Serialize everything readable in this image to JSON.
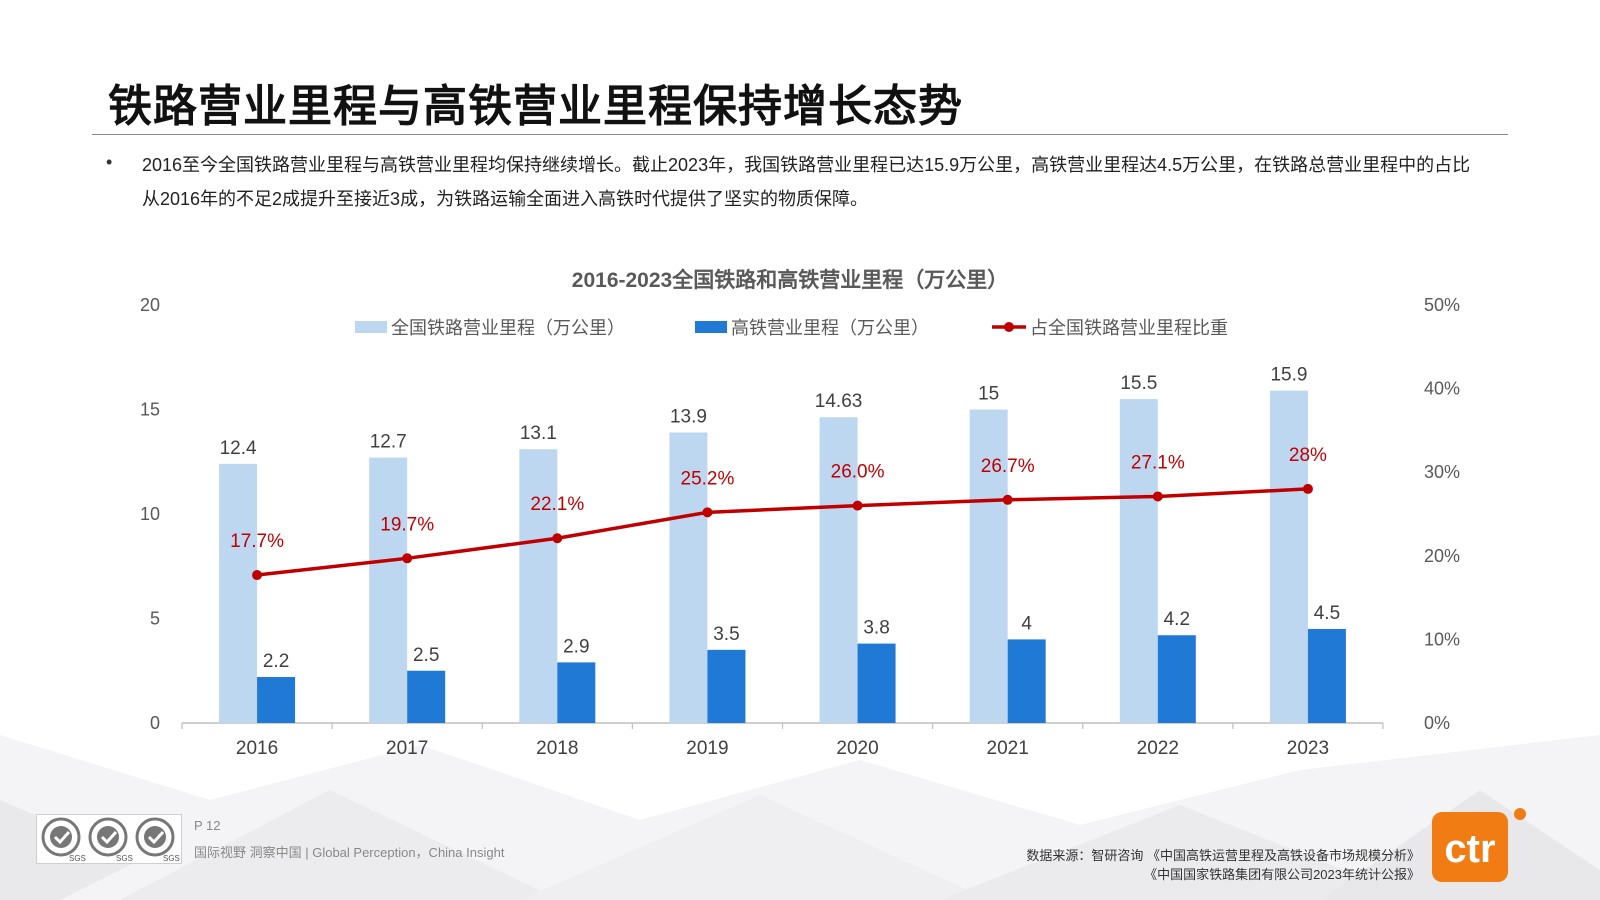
{
  "page": {
    "title": "铁路营业里程与高铁营业里程保持增长态势",
    "bullet": "•",
    "summary": "2016至今全国铁路营业里程与高铁营业里程均保持继续增长。截止2023年，我国铁路营业里程已达15.9万公里，高铁营业里程达4.5万公里，在铁路总营业里程中的占比从2016年的不足2成提升至接近3成，为铁路运输全面进入高铁时代提供了坚实的物质保障。"
  },
  "chart_data": {
    "type": "bar",
    "title": "2016-2023全国铁路和高铁营业里程（万公里）",
    "categories": [
      "2016",
      "2017",
      "2018",
      "2019",
      "2020",
      "2021",
      "2022",
      "2023"
    ],
    "series": [
      {
        "name": "全国铁路营业里程（万公里）",
        "type": "bar",
        "axis": "left",
        "color": "#bdd7f1",
        "values": [
          12.4,
          12.7,
          13.1,
          13.9,
          14.63,
          15,
          15.5,
          15.9
        ],
        "labels": [
          "12.4",
          "12.7",
          "13.1",
          "13.9",
          "14.63",
          "15",
          "15.5",
          "15.9"
        ]
      },
      {
        "name": "高铁营业里程（万公里）",
        "type": "bar",
        "axis": "left",
        "color": "#2079d4",
        "values": [
          2.2,
          2.5,
          2.9,
          3.5,
          3.8,
          4,
          4.2,
          4.5
        ],
        "labels": [
          "2.2",
          "2.5",
          "2.9",
          "3.5",
          "3.8",
          "4",
          "4.2",
          "4.5"
        ]
      },
      {
        "name": "占全国铁路营业里程比重",
        "type": "line",
        "axis": "right",
        "color": "#c00000",
        "values": [
          17.7,
          19.7,
          22.1,
          25.2,
          26.0,
          26.7,
          27.1,
          28
        ],
        "labels": [
          "17.7%",
          "19.7%",
          "22.1%",
          "25.2%",
          "26.0%",
          "26.7%",
          "27.1%",
          "28%"
        ]
      }
    ],
    "y_left": {
      "min": 0,
      "max": 20,
      "ticks": [
        "0",
        "5",
        "10",
        "15",
        "20"
      ]
    },
    "y_right": {
      "min": 0,
      "max": 50,
      "ticks": [
        "0%",
        "10%",
        "20%",
        "30%",
        "40%",
        "50%"
      ]
    },
    "grid": false,
    "legend_position": "top"
  },
  "footer": {
    "page_no": "P 12",
    "tagline": "国际视野  洞察中国 |  Global Perception，China Insight",
    "source_line1": "数据来源：智研咨询 《中国高铁运营里程及高铁设备市场规模分析》",
    "source_line2": "《中国国家铁路集团有限公司2023年统计公报》",
    "badge_text": "SGS",
    "logo_text": "ctr"
  },
  "colors": {
    "title_rule": "#8a8a8a",
    "logo_orange": "#f07c13",
    "axis": "#bfbfbf"
  }
}
